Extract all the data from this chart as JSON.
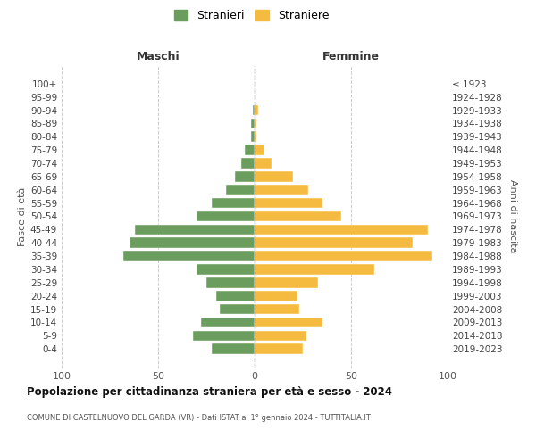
{
  "age_groups": [
    "100+",
    "95-99",
    "90-94",
    "85-89",
    "80-84",
    "75-79",
    "70-74",
    "65-69",
    "60-64",
    "55-59",
    "50-54",
    "45-49",
    "40-44",
    "35-39",
    "30-34",
    "25-29",
    "20-24",
    "15-19",
    "10-14",
    "5-9",
    "0-4"
  ],
  "birth_years": [
    "≤ 1923",
    "1924-1928",
    "1929-1933",
    "1934-1938",
    "1939-1943",
    "1944-1948",
    "1949-1953",
    "1954-1958",
    "1959-1963",
    "1964-1968",
    "1969-1973",
    "1974-1978",
    "1979-1983",
    "1984-1988",
    "1989-1993",
    "1994-1998",
    "1999-2003",
    "2004-2008",
    "2009-2013",
    "2014-2018",
    "2019-2023"
  ],
  "males": [
    0,
    0,
    1,
    2,
    2,
    5,
    7,
    10,
    15,
    22,
    30,
    62,
    65,
    68,
    30,
    25,
    20,
    18,
    28,
    32,
    22
  ],
  "females": [
    0,
    0,
    2,
    1,
    1,
    5,
    9,
    20,
    28,
    35,
    45,
    90,
    82,
    92,
    62,
    33,
    22,
    23,
    35,
    27,
    25
  ],
  "male_color": "#6b9e5e",
  "female_color": "#f5bb40",
  "background_color": "#ffffff",
  "grid_color": "#cccccc",
  "title": "Popolazione per cittadinanza straniera per età e sesso - 2024",
  "subtitle": "COMUNE DI CASTELNUOVO DEL GARDA (VR) - Dati ISTAT al 1° gennaio 2024 - TUTTITALIA.IT",
  "legend_male": "Stranieri",
  "legend_female": "Straniere",
  "xlabel_left": "Maschi",
  "xlabel_right": "Femmine",
  "ylabel_left": "Fasce di età",
  "ylabel_right": "Anni di nascita",
  "xlim": 100,
  "center_line_color": "#999999"
}
